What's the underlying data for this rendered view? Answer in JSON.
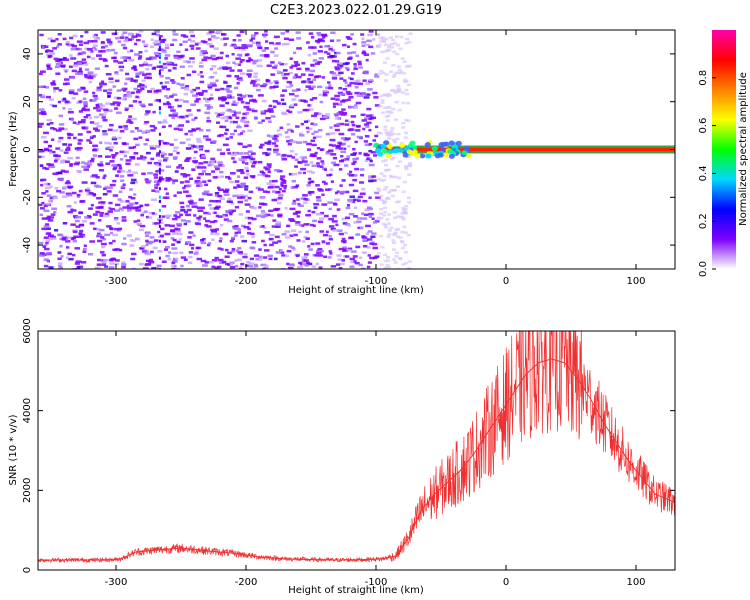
{
  "title": "C2E3.2023.022.01.29.G19",
  "chart_data": [
    {
      "type": "heatmap",
      "xlabel": "Height of straight line (km)",
      "ylabel": "Frequency (Hz)",
      "xlim": [
        -360,
        130
      ],
      "ylim": [
        -50,
        50
      ],
      "x_ticks": [
        -300,
        -200,
        -100,
        0,
        100
      ],
      "y_ticks": [
        -40,
        -20,
        0,
        20,
        40
      ],
      "colorbar": {
        "label": "Normalized spectral amplitude",
        "range": [
          0,
          1
        ],
        "ticks": [
          "0.0",
          "0.2",
          "0.4",
          "0.6",
          "0.8"
        ],
        "colors": [
          "#ffffff",
          "#7b00ff",
          "#0000ff",
          "#00d8ff",
          "#00ff00",
          "#ffff00",
          "#ff8000",
          "#ff0000",
          "#ff00aa"
        ]
      },
      "noise_region_x": [
        -360,
        -100
      ],
      "line_signal": {
        "x_start": -100,
        "x_end": 130,
        "frequency": 0
      }
    },
    {
      "type": "line",
      "xlabel": "Height of straight line (km)",
      "ylabel": "SNR (10 * v/v)",
      "xlim": [
        -360,
        130
      ],
      "ylim": [
        0,
        6000
      ],
      "x_ticks": [
        -300,
        -200,
        -100,
        0,
        100
      ],
      "y_ticks": [
        0,
        2000,
        4000,
        6000
      ],
      "line_color": "#f03030",
      "series": [
        {
          "x": [
            -360,
            -340,
            -320,
            -300,
            -295,
            -285,
            -270,
            -250,
            -230,
            -210,
            -190,
            -170,
            -150,
            -130,
            -110,
            -95,
            -85,
            -75,
            -65,
            -55,
            -45,
            -35,
            -25,
            -15,
            -5,
            5,
            15,
            25,
            35,
            45,
            55,
            65,
            75,
            85,
            95,
            105,
            115,
            130
          ],
          "y": [
            250,
            250,
            250,
            260,
            300,
            450,
            500,
            550,
            480,
            420,
            330,
            280,
            260,
            250,
            260,
            280,
            350,
            800,
            1500,
            1900,
            2200,
            2500,
            2900,
            3400,
            3900,
            4400,
            4900,
            5200,
            5300,
            5200,
            4800,
            4300,
            3700,
            3200,
            2700,
            2300,
            1900,
            1700
          ]
        }
      ]
    }
  ]
}
